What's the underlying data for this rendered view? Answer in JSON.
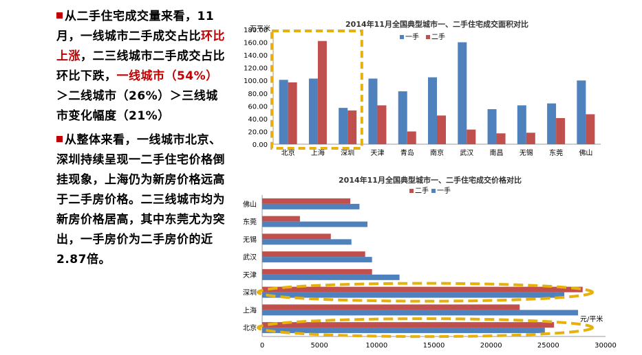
{
  "text": {
    "p1": [
      {
        "t": "从二手住宅成交量来看，11月，一线城市二手成交占比",
        "red": false
      },
      {
        "t": "环比上涨",
        "red": true
      },
      {
        "t": "，二三线城市二手成交占比环比下跌，",
        "red": false
      },
      {
        "t": "一线城市（54%）",
        "red": true
      },
      {
        "t": "＞二线城市（26%）＞三线城市变化幅度（21%）",
        "red": false
      }
    ],
    "p2": "从整体来看，一线城市北京、深圳持续呈现一二手住宅价格倒挂现象，上海仍为新房价格远高于二手房价格。二三线城市均为新房价格居高，其中东莞尤为突出，一手房价为二手房价的近2.87倍。"
  },
  "colors": {
    "first_hand": "#4f81bd",
    "second_hand": "#c0504d",
    "highlight": "#e6b10c",
    "bullet": "#c00000"
  },
  "chart_data": [
    {
      "type": "bar",
      "title": "2014年11月全国典型城市一、二手住宅成交面积对比",
      "unit_label": "万平米",
      "categories": [
        "北京",
        "上海",
        "深圳",
        "天津",
        "青岛",
        "南京",
        "武汉",
        "南昌",
        "无锡",
        "东莞",
        "佛山"
      ],
      "series": [
        {
          "name": "一手",
          "values": [
            101,
            103,
            57,
            103,
            83,
            105,
            160,
            55,
            61,
            64,
            100
          ]
        },
        {
          "name": "二手",
          "values": [
            97,
            162,
            53,
            61,
            20,
            45,
            23,
            17,
            18,
            41,
            47
          ]
        }
      ],
      "ylim": [
        0,
        180
      ],
      "yticks": [
        "0.00",
        "20.00",
        "40.00",
        "60.00",
        "80.00",
        "100.00",
        "120.00",
        "140.00",
        "160.00",
        "180.00"
      ],
      "highlight": "dashed box around 北京、上海、深圳"
    },
    {
      "type": "bar",
      "orientation": "horizontal",
      "title": "2014年11月全国典型城市一、二手住宅成交价格对比",
      "unit_label": "元/平米",
      "categories": [
        "佛山",
        "东莞",
        "无锡",
        "武汉",
        "天津",
        "深圳",
        "上海",
        "北京"
      ],
      "series": [
        {
          "name": "二手",
          "values": [
            7700,
            3300,
            6000,
            9000,
            9600,
            28000,
            22500,
            25500
          ]
        },
        {
          "name": "一手",
          "values": [
            8500,
            9200,
            7800,
            9600,
            12000,
            26400,
            27600,
            24700
          ]
        }
      ],
      "xlim": [
        0,
        30000
      ],
      "xticks": [
        "0",
        "5000",
        "10000",
        "15000",
        "20000",
        "25000",
        "30000"
      ],
      "highlight": "dashed ellipses around 深圳 and 北京"
    }
  ]
}
